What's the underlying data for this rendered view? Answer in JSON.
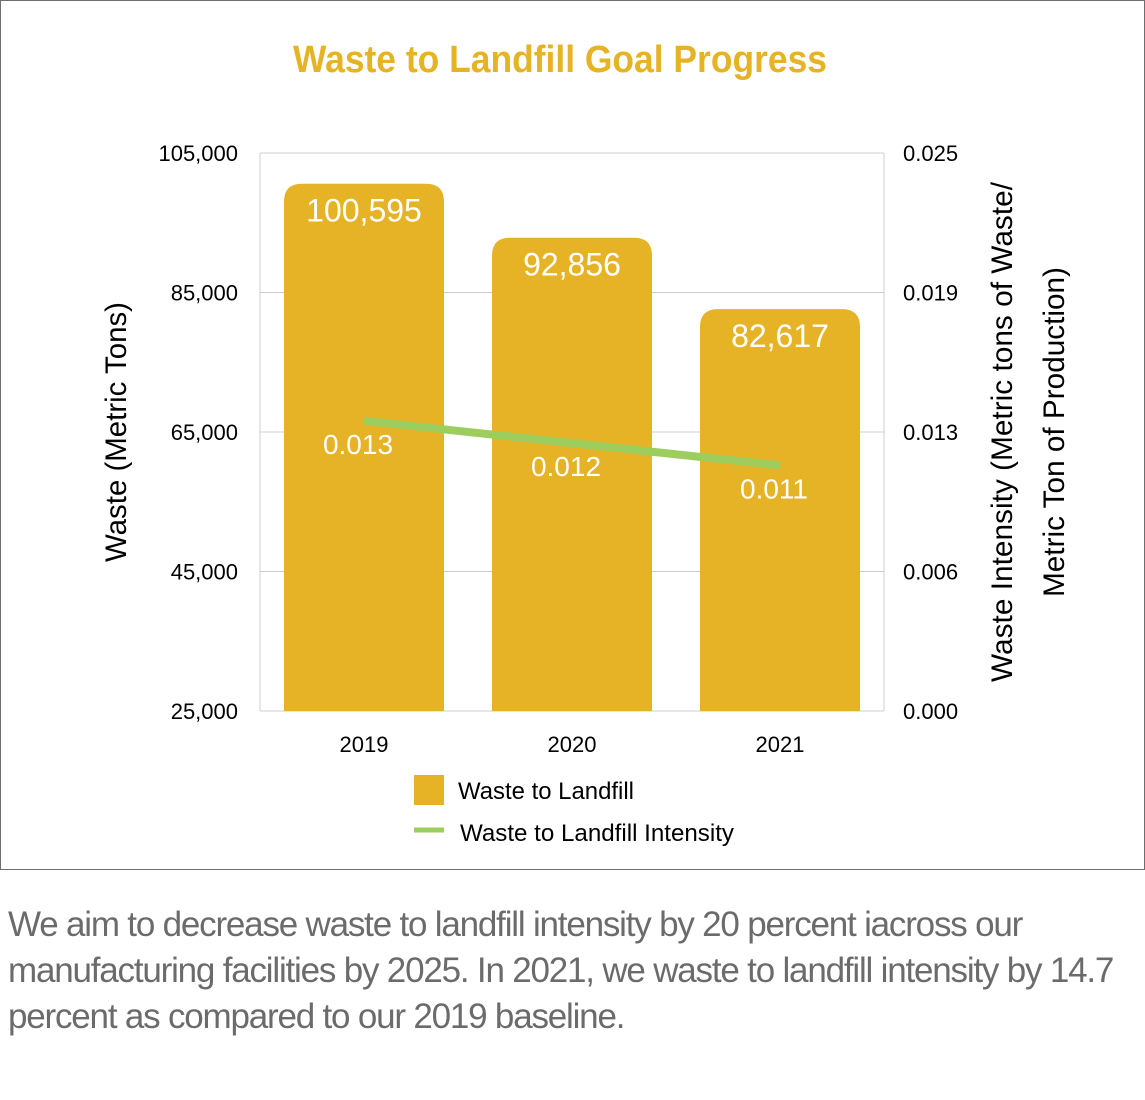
{
  "chart_data": {
    "type": "bar",
    "title": "Waste to Landfill Goal Progress",
    "categories": [
      "2019",
      "2020",
      "2021"
    ],
    "ylabel": "Waste (Metric Tons)",
    "y2label_line1": "Waste Intensity (Metric tons of Waste/",
    "y2label_line2": "Metric Ton of Production)",
    "ylim": [
      25000,
      105000
    ],
    "yticks": [
      25000,
      45000,
      65000,
      85000,
      105000
    ],
    "ytick_labels": [
      "25,000",
      "45,000",
      "65,000",
      "85,000",
      "105,000"
    ],
    "y2lim": [
      0.0,
      0.025
    ],
    "y2ticks": [
      0.0,
      0.00625,
      0.0125,
      0.01875,
      0.025
    ],
    "y2tick_labels": [
      "0.000",
      "0.006",
      "0.013",
      "0.019",
      "0.025"
    ],
    "series": [
      {
        "name": "Waste to Landfill",
        "type": "bar",
        "axis": "left",
        "values": [
          100595,
          92856,
          82617
        ],
        "labels": [
          "100,595",
          "92,856",
          "82,617"
        ]
      },
      {
        "name": "Waste to Landfill Intensity",
        "type": "line",
        "axis": "right",
        "values": [
          0.013,
          0.012,
          0.011
        ],
        "labels": [
          "0.013",
          "0.012",
          "0.011"
        ]
      }
    ],
    "grid": true,
    "legend_position": "bottom",
    "colors": {
      "bar": "#e6b327",
      "line": "#9ccd5d",
      "title": "#e6b327",
      "grid": "#cccccc"
    }
  },
  "caption": "We aim to decrease waste to landfill intensity by 20 percent iacross our manufacturing facilities by 2025. In 2021, we waste to landfill intensity by 14.7 percent as compared to our 2019 baseline."
}
